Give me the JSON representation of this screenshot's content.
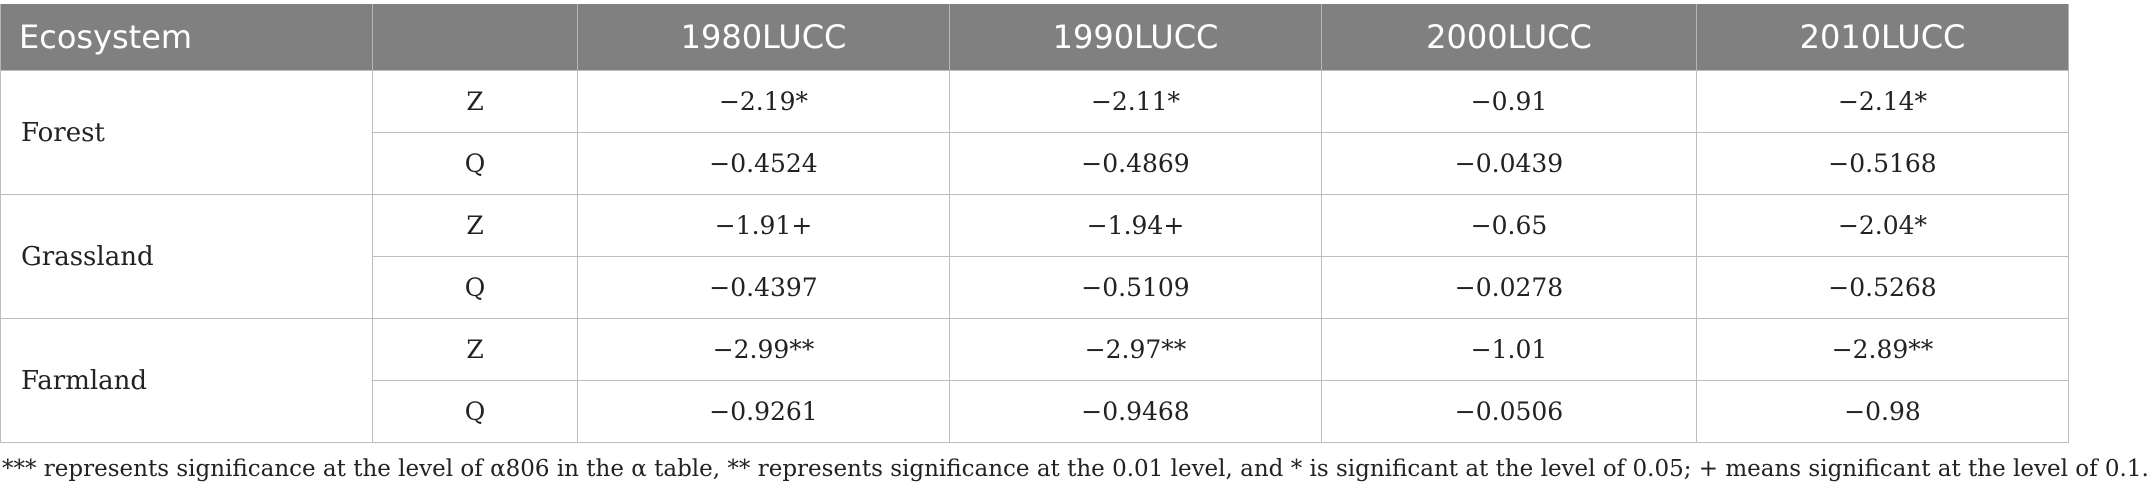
{
  "table": {
    "headers": [
      "Ecosystem",
      "",
      "1980LUCC",
      "1990LUCC",
      "2000LUCC",
      "2010LUCC"
    ],
    "groups": [
      {
        "ecosystem": "Forest",
        "rows": [
          {
            "stat": "Z",
            "values": [
              "−2.19*",
              "−2.11*",
              "−0.91",
              "−2.14*"
            ]
          },
          {
            "stat": "Q",
            "values": [
              "−0.4524",
              "−0.4869",
              "−0.0439",
              "−0.5168"
            ]
          }
        ]
      },
      {
        "ecosystem": "Grassland",
        "rows": [
          {
            "stat": "Z",
            "values": [
              "−1.91+",
              "−1.94+",
              "−0.65",
              "−2.04*"
            ]
          },
          {
            "stat": "Q",
            "values": [
              "−0.4397",
              "−0.5109",
              "−0.0278",
              "−0.5268"
            ]
          }
        ]
      },
      {
        "ecosystem": "Farmland",
        "rows": [
          {
            "stat": "Z",
            "values": [
              "−2.99**",
              "−2.97**",
              "−1.01",
              "−2.89**"
            ]
          },
          {
            "stat": "Q",
            "values": [
              "−0.9261",
              "−0.9468",
              "−0.0506",
              "−0.98"
            ]
          }
        ]
      }
    ]
  },
  "footnote": "*** represents significance at the level of α806 in the α table, ** represents significance at the 0.01 level, and * is significant at the level of 0.05; + means significant at the level of 0.1."
}
